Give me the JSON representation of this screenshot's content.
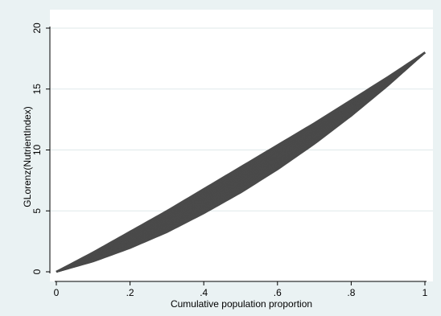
{
  "chart_data": {
    "type": "line",
    "title": "",
    "xlabel": "Cumulative population proportion",
    "ylabel": "GLorenz(NutrientIndex)",
    "xlim": [
      0,
      1
    ],
    "ylim": [
      0,
      20
    ],
    "xticks": [
      0,
      0.2,
      0.4,
      0.6,
      0.8,
      1
    ],
    "xtick_labels": [
      "0",
      ".2",
      ".4",
      ".6",
      ".8",
      "1"
    ],
    "yticks": [
      0,
      5,
      10,
      15,
      20
    ],
    "ytick_labels": [
      "0",
      "5",
      "10",
      "15",
      "20"
    ],
    "grid": "horizontal",
    "legend": "none",
    "series_color": "#4a4a4a",
    "background_color": "#eaf2f3",
    "plot_background_color": "#ffffff",
    "series_summary": {
      "count": 40,
      "end_point": [
        1,
        18
      ],
      "x": [
        0,
        0.1,
        0.2,
        0.3,
        0.4,
        0.5,
        0.6,
        0.7,
        0.8,
        0.9,
        1
      ],
      "lower_envelope": [
        0,
        0.85,
        1.95,
        3.25,
        4.8,
        6.5,
        8.4,
        10.5,
        12.8,
        15.3,
        18
      ],
      "upper_envelope": [
        0,
        1.6,
        3.3,
        5.0,
        6.8,
        8.6,
        10.4,
        12.2,
        14.1,
        16.0,
        18
      ]
    }
  }
}
